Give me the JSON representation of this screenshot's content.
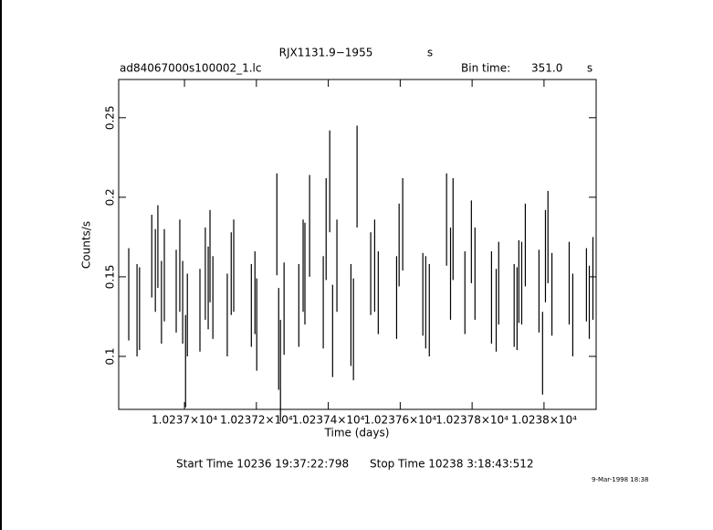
{
  "chart_data": {
    "type": "errorbar",
    "title": "RJX1131.9−1955",
    "title_unit": "s",
    "file_name": "ad84067000s100002_1.lc",
    "bin_time_label": "Bin time:",
    "bin_time": "351.0",
    "bin_time_unit": "s",
    "x_label": "Time (days)",
    "y_label": "Counts/s",
    "start_time": "Start Time 10236 19:37:22:798",
    "stop_time": "Stop Time 10238  3:18:43:512",
    "date_stamp": "9-Mar-1998 18:38",
    "color": "#000000",
    "xlim": [
      10236.817,
      10238.145
    ],
    "ylim": [
      0.0667,
      0.274
    ],
    "xticks": [
      {
        "value": 10237,
        "label": "1.0237×10⁴"
      },
      {
        "value": 10237.2,
        "label": "1.02372×10⁴"
      },
      {
        "value": 10237.4,
        "label": "1.02374×10⁴"
      },
      {
        "value": 10237.6,
        "label": "1.02376×10⁴"
      },
      {
        "value": 10237.8,
        "label": "1.02378×10⁴"
      },
      {
        "value": 10238,
        "label": "1.0238×10⁴"
      }
    ],
    "yticks": [
      0.1,
      0.15,
      0.2,
      0.25
    ],
    "x": [
      10236.845,
      10236.868,
      10236.875,
      10236.909,
      10236.919,
      10236.926,
      10236.936,
      10236.944,
      10236.977,
      10236.987,
      10236.995,
      10237.003,
      10237.008,
      10237.043,
      10237.058,
      10237.066,
      10237.071,
      10237.079,
      10237.119,
      10237.13,
      10237.137,
      10237.186,
      10237.196,
      10237.201,
      10237.257,
      10237.262,
      10237.267,
      10237.277,
      10237.318,
      10237.33,
      10237.335,
      10237.348,
      10237.386,
      10237.394,
      10237.404,
      10237.412,
      10237.424,
      10237.463,
      10237.47,
      10237.48,
      10237.518,
      10237.529,
      10237.539,
      10237.59,
      10237.597,
      10237.607,
      10237.663,
      10237.671,
      10237.681,
      10237.729,
      10237.74,
      10237.747,
      10237.78,
      10237.798,
      10237.808,
      10237.854,
      10237.867,
      10237.874,
      10237.917,
      10237.925,
      10237.93,
      10237.938,
      10237.948,
      10237.986,
      10237.996,
      10238.004,
      10238.011,
      10238.022,
      10238.07,
      10238.08,
      10238.118,
      10238.126,
      10238.136
    ],
    "values": [
      0.139,
      0.129,
      0.13,
      0.163,
      0.154,
      0.169,
      0.134,
      0.151,
      0.141,
      0.157,
      0.134,
      0.097,
      0.126,
      0.129,
      0.152,
      0.143,
      0.163,
      0.137,
      0.126,
      0.152,
      0.157,
      0.132,
      0.14,
      0.12,
      0.183,
      0.111,
      0.091,
      0.13,
      0.132,
      0.157,
      0.152,
      0.182,
      0.134,
      0.18,
      0.21,
      0.116,
      0.157,
      0.126,
      0.117,
      0.213,
      0.152,
      0.157,
      0.14,
      0.137,
      0.17,
      0.183,
      0.139,
      0.134,
      0.129,
      0.186,
      0.152,
      0.18,
      0.14,
      0.172,
      0.152,
      0.137,
      0.129,
      0.146,
      0.132,
      0.13,
      0.147,
      0.146,
      0.17,
      0.141,
      0.102,
      0.163,
      0.175,
      0.139,
      0.146,
      0.126,
      0.145,
      0.134,
      0.149
    ],
    "errors": [
      0.029,
      0.029,
      0.026,
      0.026,
      0.026,
      0.026,
      0.026,
      0.029,
      0.026,
      0.029,
      0.026,
      0.029,
      0.026,
      0.026,
      0.029,
      0.026,
      0.029,
      0.026,
      0.026,
      0.026,
      0.029,
      0.026,
      0.026,
      0.029,
      0.032,
      0.032,
      0.032,
      0.029,
      0.026,
      0.029,
      0.032,
      0.032,
      0.029,
      0.032,
      0.032,
      0.029,
      0.029,
      0.032,
      0.032,
      0.032,
      0.026,
      0.029,
      0.026,
      0.026,
      0.026,
      0.029,
      0.026,
      0.029,
      0.029,
      0.029,
      0.029,
      0.032,
      0.026,
      0.026,
      0.029,
      0.029,
      0.026,
      0.026,
      0.026,
      0.026,
      0.026,
      0.026,
      0.026,
      0.026,
      0.026,
      0.029,
      0.029,
      0.026,
      0.026,
      0.026,
      0.023,
      0.023,
      0.026
    ]
  }
}
